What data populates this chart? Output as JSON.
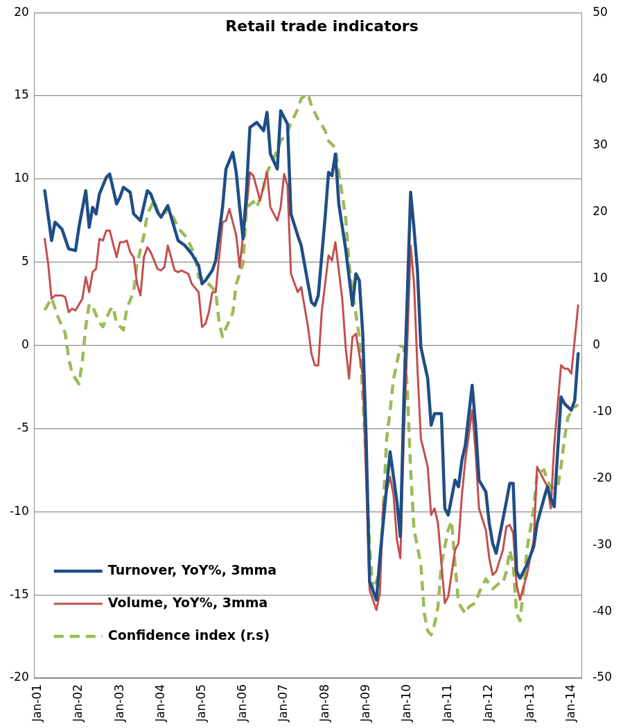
{
  "chart_data": {
    "type": "line",
    "title": "Retail trade indicators",
    "xlim": [
      "2000-12",
      "2014-04"
    ],
    "xticks": [
      {
        "value": "2001-01",
        "label": "Jan-01"
      },
      {
        "value": "2002-01",
        "label": "Jan-02"
      },
      {
        "value": "2003-01",
        "label": "Jan-03"
      },
      {
        "value": "2004-01",
        "label": "Jan-04"
      },
      {
        "value": "2005-01",
        "label": "Jan-05"
      },
      {
        "value": "2006-01",
        "label": "Jan-06"
      },
      {
        "value": "2007-01",
        "label": "Jan-07"
      },
      {
        "value": "2008-01",
        "label": "Jan-08"
      },
      {
        "value": "2009-01",
        "label": "Jan-09"
      },
      {
        "value": "2010-01",
        "label": "Jan-10"
      },
      {
        "value": "2011-01",
        "label": "Jan-11"
      },
      {
        "value": "2012-01",
        "label": "Jan-12"
      },
      {
        "value": "2013-01",
        "label": "Jan-13"
      },
      {
        "value": "2014-01",
        "label": "Jan-14"
      }
    ],
    "ylim": [
      -20,
      20
    ],
    "yticks": [
      -20,
      -15,
      -10,
      -5,
      0,
      5,
      10,
      15,
      20
    ],
    "y2lim": [
      -50,
      50
    ],
    "y2ticks": [
      -50,
      -40,
      -30,
      -20,
      -10,
      0,
      10,
      20,
      30,
      40,
      50
    ],
    "grid": "y",
    "legend": "bottom left",
    "marker": "none",
    "series": [
      {
        "name": "Turnover, YoY%, 3mma",
        "color": "#1f4e85",
        "line_style": "solid",
        "x": [
          "2001-03",
          "2001-05",
          "2001-06",
          "2001-08",
          "2001-10",
          "2001-12",
          "2002-01",
          "2002-03",
          "2002-04",
          "2002-05",
          "2002-06",
          "2002-07",
          "2002-09",
          "2002-10",
          "2002-12",
          "2003-01",
          "2003-02",
          "2003-04",
          "2003-05",
          "2003-07",
          "2003-09",
          "2003-10",
          "2003-12",
          "2004-01",
          "2004-03",
          "2004-05",
          "2004-06",
          "2004-08",
          "2004-10",
          "2004-12",
          "2005-01",
          "2005-02",
          "2005-04",
          "2005-05",
          "2005-07",
          "2005-08",
          "2005-10",
          "2005-11",
          "2005-12",
          "2006-01",
          "2006-02",
          "2006-03",
          "2006-05",
          "2006-07",
          "2006-08",
          "2006-09",
          "2006-11",
          "2006-12",
          "2007-02",
          "2007-03",
          "2007-05",
          "2007-06",
          "2007-08",
          "2007-09",
          "2007-10",
          "2007-11",
          "2008-01",
          "2008-02",
          "2008-03",
          "2008-04",
          "2008-05",
          "2008-07",
          "2008-09",
          "2008-10",
          "2008-11",
          "2008-12",
          "2009-01",
          "2009-02",
          "2009-04",
          "2009-05",
          "2009-07",
          "2009-08",
          "2009-10",
          "2009-11",
          "2009-12",
          "2010-01",
          "2010-02",
          "2010-03",
          "2010-04",
          "2010-05",
          "2010-07",
          "2010-08",
          "2010-09",
          "2010-11",
          "2010-12",
          "2011-01",
          "2011-03",
          "2011-04",
          "2011-05",
          "2011-06",
          "2011-08",
          "2011-09",
          "2011-10",
          "2011-12",
          "2012-01",
          "2012-02",
          "2012-03",
          "2012-04",
          "2012-06",
          "2012-07",
          "2012-08",
          "2012-09",
          "2012-10",
          "2012-12",
          "2013-02",
          "2013-03",
          "2013-05",
          "2013-06",
          "2013-07",
          "2013-08",
          "2013-10",
          "2013-11",
          "2014-01",
          "2014-02",
          "2014-03"
        ],
        "values": [
          9.3,
          6.3,
          7.4,
          7.0,
          5.8,
          5.7,
          7.1,
          9.3,
          7.1,
          8.3,
          7.9,
          9.1,
          10.1,
          10.3,
          8.5,
          8.9,
          9.5,
          9.2,
          7.9,
          7.5,
          9.3,
          9.1,
          8.0,
          7.7,
          8.4,
          7.0,
          6.3,
          6.0,
          5.5,
          4.8,
          3.7,
          3.9,
          4.5,
          5.1,
          8.3,
          10.6,
          11.6,
          10.4,
          8.3,
          6.4,
          9.3,
          13.1,
          13.4,
          12.9,
          14.0,
          11.5,
          10.6,
          14.1,
          13.3,
          7.9,
          6.6,
          6.0,
          3.7,
          2.6,
          2.4,
          3.0,
          7.7,
          10.4,
          10.2,
          11.5,
          8.5,
          5.8,
          2.4,
          4.3,
          3.9,
          0.7,
          -5.6,
          -14.2,
          -15.3,
          -12.8,
          -8.5,
          -6.4,
          -9.4,
          -11.5,
          -3.5,
          2.8,
          9.2,
          7.0,
          4.5,
          -0.1,
          -2.0,
          -4.8,
          -4.1,
          -4.1,
          -9.8,
          -10.2,
          -8.1,
          -8.5,
          -6.9,
          -6.0,
          -2.4,
          -4.8,
          -8.1,
          -8.8,
          -10.7,
          -11.9,
          -12.5,
          -11.5,
          -9.4,
          -8.3,
          -8.3,
          -13.6,
          -14.0,
          -13.2,
          -12.1,
          -10.7,
          -9.2,
          -8.5,
          -9.2,
          -9.7,
          -3.1,
          -3.5,
          -3.9,
          -3.3,
          -0.5
        ]
      },
      {
        "name": "Volume, YoY%, 3mma",
        "color": "#c0504d",
        "line_style": "solid",
        "x": [
          "2001-03",
          "2001-04",
          "2001-05",
          "2001-06",
          "2001-08",
          "2001-09",
          "2001-10",
          "2001-11",
          "2001-12",
          "2002-02",
          "2002-03",
          "2002-04",
          "2002-05",
          "2002-06",
          "2002-07",
          "2002-08",
          "2002-09",
          "2002-10",
          "2002-12",
          "2003-01",
          "2003-02",
          "2003-03",
          "2003-04",
          "2003-05",
          "2003-06",
          "2003-07",
          "2003-08",
          "2003-09",
          "2003-10",
          "2003-12",
          "2004-01",
          "2004-02",
          "2004-03",
          "2004-05",
          "2004-06",
          "2004-07",
          "2004-09",
          "2004-10",
          "2004-12",
          "2005-01",
          "2005-02",
          "2005-03",
          "2005-04",
          "2005-05",
          "2005-07",
          "2005-08",
          "2005-09",
          "2005-11",
          "2005-12",
          "2006-01",
          "2006-02",
          "2006-03",
          "2006-04",
          "2006-06",
          "2006-07",
          "2006-08",
          "2006-09",
          "2006-11",
          "2006-12",
          "2007-01",
          "2007-02",
          "2007-03",
          "2007-05",
          "2007-06",
          "2007-08",
          "2007-09",
          "2007-10",
          "2007-11",
          "2007-12",
          "2008-02",
          "2008-03",
          "2008-04",
          "2008-06",
          "2008-07",
          "2008-08",
          "2008-09",
          "2008-10",
          "2008-12",
          "2009-01",
          "2009-02",
          "2009-04",
          "2009-05",
          "2009-06",
          "2009-08",
          "2009-09",
          "2009-10",
          "2009-11",
          "2009-12",
          "2010-01",
          "2010-02",
          "2010-03",
          "2010-04",
          "2010-05",
          "2010-07",
          "2010-08",
          "2010-09",
          "2010-10",
          "2010-12",
          "2011-01",
          "2011-03",
          "2011-04",
          "2011-05",
          "2011-06",
          "2011-08",
          "2011-09",
          "2011-10",
          "2011-12",
          "2012-01",
          "2012-02",
          "2012-03",
          "2012-05",
          "2012-06",
          "2012-07",
          "2012-08",
          "2012-09",
          "2012-10",
          "2012-12",
          "2013-02",
          "2013-03",
          "2013-05",
          "2013-06",
          "2013-07",
          "2013-08",
          "2013-10",
          "2013-11",
          "2013-12",
          "2014-01",
          "2014-03"
        ],
        "values": [
          6.4,
          4.9,
          2.8,
          3.0,
          3.0,
          2.9,
          2.0,
          2.2,
          2.1,
          2.8,
          4.1,
          3.2,
          4.4,
          4.6,
          6.4,
          6.3,
          6.9,
          6.9,
          5.3,
          6.2,
          6.2,
          6.3,
          5.6,
          5.3,
          3.7,
          3.0,
          5.3,
          5.9,
          5.6,
          4.6,
          4.5,
          4.7,
          6.0,
          4.5,
          4.4,
          4.5,
          4.3,
          3.7,
          3.2,
          1.1,
          1.3,
          2.0,
          3.2,
          3.2,
          7.4,
          7.5,
          8.2,
          6.6,
          4.7,
          6.6,
          8.2,
          10.4,
          10.2,
          8.7,
          9.6,
          10.4,
          8.3,
          7.5,
          8.3,
          10.3,
          9.6,
          4.3,
          3.2,
          3.5,
          1.1,
          -0.5,
          -1.2,
          -1.2,
          2.0,
          5.4,
          5.1,
          6.2,
          2.8,
          -0.1,
          -2.0,
          0.5,
          0.7,
          -1.8,
          -8.1,
          -14.7,
          -15.9,
          -14.9,
          -9.6,
          -7.9,
          -9.0,
          -11.7,
          -12.8,
          -5.6,
          -0.1,
          6.0,
          3.7,
          -1.4,
          -5.6,
          -7.3,
          -10.2,
          -9.8,
          -10.7,
          -15.5,
          -15.1,
          -12.3,
          -11.9,
          -9.0,
          -6.9,
          -3.9,
          -6.4,
          -9.8,
          -11.1,
          -12.8,
          -13.8,
          -13.6,
          -12.3,
          -10.9,
          -10.8,
          -11.3,
          -14.4,
          -15.3,
          -13.8,
          -11.7,
          -7.3,
          -8.1,
          -8.5,
          -9.8,
          -6.0,
          -1.2,
          -1.4,
          -1.4,
          -1.7,
          2.4
        ]
      },
      {
        "name": "Confidence index (r.s)",
        "color": "#9bbb59",
        "line_style": "dashed",
        "axis": "y2",
        "x": [
          "2001-03",
          "2001-05",
          "2001-07",
          "2001-09",
          "2001-10",
          "2001-11",
          "2002-01",
          "2002-02",
          "2002-03",
          "2002-04",
          "2002-05",
          "2002-07",
          "2002-08",
          "2002-10",
          "2002-11",
          "2002-12",
          "2003-02",
          "2003-03",
          "2003-05",
          "2003-06",
          "2003-08",
          "2003-09",
          "2003-11",
          "2003-12",
          "2004-02",
          "2004-03",
          "2004-05",
          "2004-06",
          "2004-08",
          "2004-09",
          "2004-11",
          "2004-12",
          "2005-02",
          "2005-03",
          "2005-05",
          "2005-06",
          "2005-07",
          "2005-08",
          "2005-10",
          "2005-11",
          "2006-01",
          "2006-02",
          "2006-04",
          "2006-05",
          "2006-07",
          "2006-08",
          "2006-10",
          "2006-12",
          "2007-02",
          "2007-03",
          "2007-05",
          "2007-06",
          "2007-08",
          "2007-09",
          "2007-11",
          "2008-01",
          "2008-02",
          "2008-04",
          "2008-05",
          "2008-07",
          "2008-08",
          "2008-09",
          "2008-11",
          "2008-12",
          "2009-01",
          "2009-02",
          "2009-03",
          "2009-05",
          "2009-06",
          "2009-07",
          "2009-08",
          "2009-09",
          "2009-11",
          "2009-12",
          "2010-01",
          "2010-02",
          "2010-03",
          "2010-05",
          "2010-06",
          "2010-07",
          "2010-08",
          "2010-09",
          "2010-10",
          "2010-11",
          "2011-01",
          "2011-02",
          "2011-03",
          "2011-04",
          "2011-06",
          "2011-07",
          "2011-09",
          "2011-10",
          "2011-12",
          "2012-01",
          "2012-02",
          "2012-04",
          "2012-05",
          "2012-06",
          "2012-07",
          "2012-08",
          "2012-09",
          "2012-10",
          "2012-11",
          "2012-12",
          "2013-02",
          "2013-03",
          "2013-05",
          "2013-06",
          "2013-07",
          "2013-09",
          "2013-10",
          "2013-11",
          "2013-12",
          "2014-02",
          "2014-03"
        ],
        "values": [
          5.3,
          7.1,
          4.1,
          1.8,
          -1.9,
          -4.2,
          -5.8,
          -2.4,
          2.8,
          6.2,
          5.8,
          3.4,
          2.8,
          5.2,
          5.8,
          3.4,
          2.3,
          5.5,
          8.1,
          12.3,
          16.5,
          19.7,
          21.8,
          20.2,
          19.7,
          20.7,
          18.8,
          17.6,
          16.5,
          15.7,
          13.4,
          10.2,
          9.7,
          9.2,
          8.1,
          3.4,
          1.3,
          2.6,
          4.9,
          9.2,
          12.3,
          20.7,
          21.6,
          20.7,
          23.7,
          26.0,
          28.1,
          30.7,
          32.1,
          33.4,
          35.5,
          37.1,
          37.8,
          36.0,
          33.9,
          32.3,
          30.7,
          29.7,
          26.0,
          19.2,
          12.3,
          8.1,
          1.3,
          -7.7,
          -17.7,
          -30.3,
          -36.9,
          -34.0,
          -24.5,
          -14.0,
          -9.8,
          -5.1,
          -0.1,
          -0.3,
          -6.1,
          -18.7,
          -27.7,
          -32.9,
          -40.3,
          -42.9,
          -43.5,
          -41.9,
          -39.3,
          -32.9,
          -27.7,
          -26.4,
          -32.9,
          -38.7,
          -40.3,
          -39.3,
          -38.7,
          -37.2,
          -35.1,
          -35.9,
          -36.6,
          -35.7,
          -35.7,
          -34.0,
          -30.8,
          -32.9,
          -40.3,
          -41.4,
          -36.6,
          -30.8,
          -24.5,
          -19.3,
          -18.7,
          -20.3,
          -21.4,
          -21.4,
          -18.2,
          -14.0,
          -10.8,
          -9.3,
          -8.9
        ]
      }
    ]
  }
}
